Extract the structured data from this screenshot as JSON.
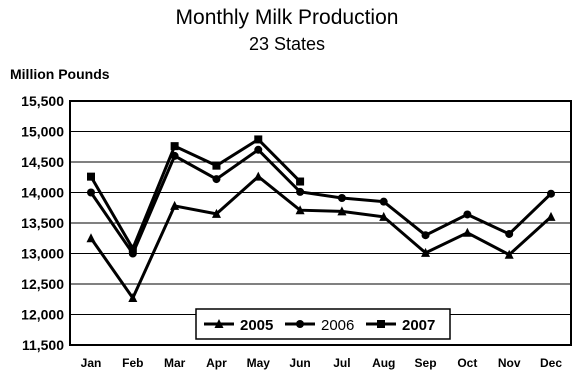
{
  "chart_data": {
    "type": "line",
    "title": "Monthly Milk Production",
    "subtitle": "23  States",
    "ylabel": "Million Pounds",
    "xlabel": "",
    "categories": [
      "Jan",
      "Feb",
      "Mar",
      "Apr",
      "May",
      "Jun",
      "Jul",
      "Aug",
      "Sep",
      "Oct",
      "Nov",
      "Dec"
    ],
    "ylim": [
      11500,
      15500
    ],
    "yticks": [
      "11,500",
      "12,000",
      "12,500",
      "13,000",
      "13,500",
      "14,000",
      "14,500",
      "15,000",
      "15,500"
    ],
    "grid": "horizontal",
    "legend_position": "bottom-center",
    "series": [
      {
        "name": "2005",
        "marker": "triangle",
        "bold_label": true,
        "values": [
          13250,
          12270,
          13780,
          13650,
          14260,
          13710,
          13690,
          13600,
          13010,
          13340,
          12980,
          13600
        ]
      },
      {
        "name": "2006",
        "marker": "circle",
        "bold_label": false,
        "values": [
          14000,
          13000,
          14600,
          14220,
          14700,
          14010,
          13910,
          13850,
          13300,
          13640,
          13320,
          13980
        ]
      },
      {
        "name": "2007",
        "marker": "square",
        "bold_label": true,
        "values": [
          14260,
          13080,
          14760,
          14440,
          14870,
          14180,
          null,
          null,
          null,
          null,
          null,
          null
        ]
      }
    ]
  }
}
